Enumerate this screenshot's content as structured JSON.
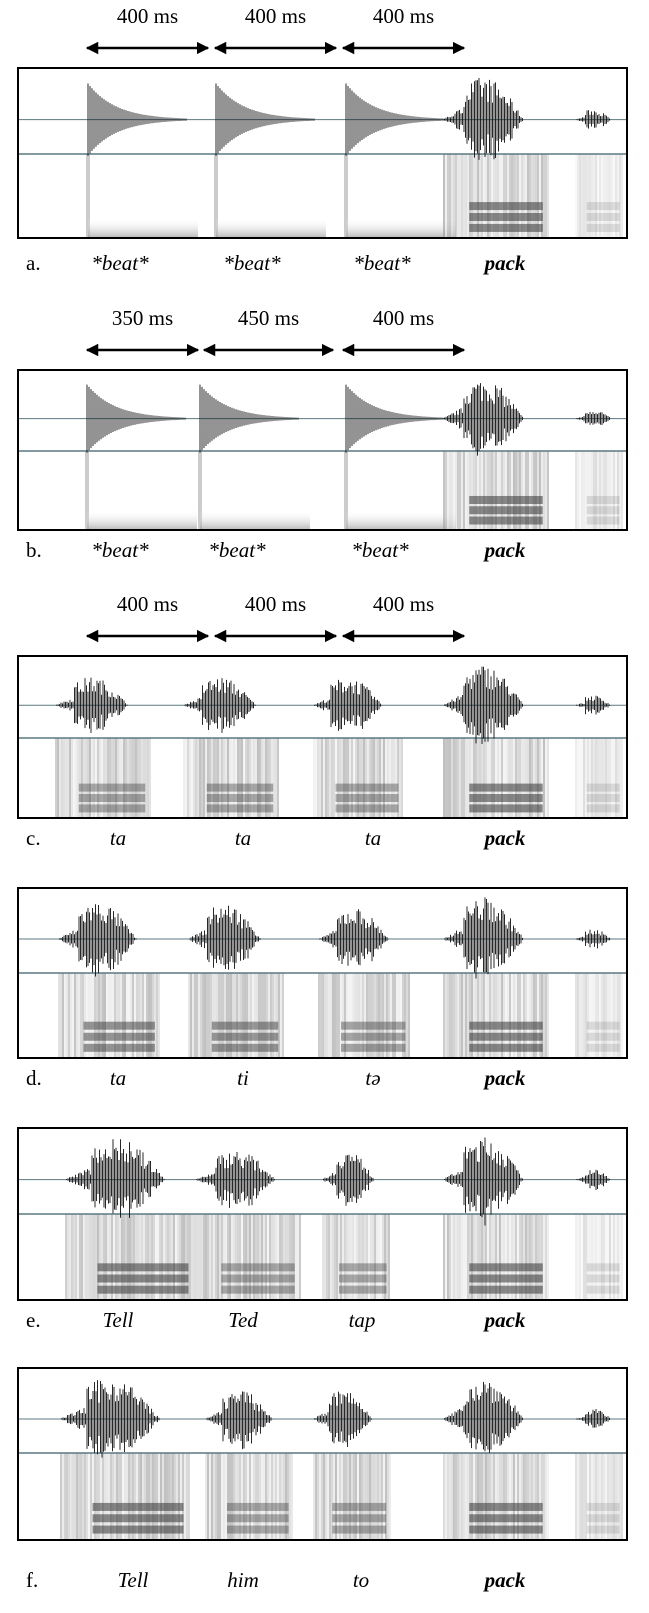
{
  "panels": [
    {
      "letter": "a.",
      "intervals": [
        "400 ms",
        "400 ms",
        "400 ms"
      ],
      "words": [
        "*beat*",
        "*beat*",
        "*beat*",
        "pack"
      ]
    },
    {
      "letter": "b.",
      "intervals": [
        "350 ms",
        "450 ms",
        "400 ms"
      ],
      "words": [
        "*beat*",
        "*beat*",
        "*beat*",
        "pack"
      ]
    },
    {
      "letter": "c.",
      "intervals": [
        "400 ms",
        "400 ms",
        "400 ms"
      ],
      "words": [
        "ta",
        "ta",
        "ta",
        "pack"
      ]
    },
    {
      "letter": "d.",
      "words": [
        "ta",
        "ti",
        "tə",
        "pack"
      ]
    },
    {
      "letter": "e.",
      "words": [
        "Tell",
        "Ted",
        "tap",
        "pack"
      ]
    },
    {
      "letter": "f.",
      "words": [
        "Tell",
        "him",
        "to",
        "pack"
      ]
    }
  ]
}
